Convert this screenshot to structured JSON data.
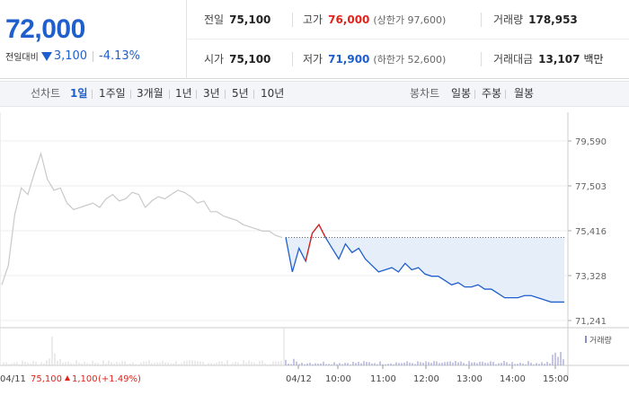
{
  "summary": {
    "price": "72,000",
    "change_label": "전일대비",
    "change_amount": "3,100",
    "change_percent": "-4.13%"
  },
  "stats": {
    "prev_close_label": "전일",
    "prev_close": "75,100",
    "high_label": "고가",
    "high": "76,000",
    "upper_limit": "(상한가 97,600)",
    "volume_label": "거래량",
    "volume": "178,953",
    "open_label": "시가",
    "open": "75,100",
    "low_label": "저가",
    "low": "71,900",
    "lower_limit": "(하한가 52,600)",
    "amount_label": "거래대금",
    "amount": "13,107",
    "amount_unit": "백만"
  },
  "tabs": {
    "line_label": "선차트",
    "line_periods": [
      "1일",
      "1주일",
      "3개월",
      "1년",
      "3년",
      "5년",
      "10년"
    ],
    "active_period": "1일",
    "candle_label": "봉차트",
    "candle_periods": [
      "일봉",
      "주봉",
      "월봉"
    ]
  },
  "colors": {
    "up": "#e0241b",
    "down": "#1f5fcd",
    "prev_day": "#c9c9c9",
    "fill": "#e6eef9"
  },
  "chart_data": {
    "type": "line",
    "y_ticks": [
      "79,590",
      "77,503",
      "75,416",
      "73,328",
      "71,241"
    ],
    "ylim": [
      71241,
      79590
    ],
    "reference_price": 75100,
    "x_labels": [
      "04/12",
      "10:00",
      "11:00",
      "12:00",
      "13:00",
      "14:00",
      "15:00"
    ],
    "prev_day_label": "04/11",
    "prev_day_close": "75,100",
    "prev_day_change": "1,100",
    "prev_day_change_pct": "(+1.49%)",
    "volume_label": "거래량",
    "prev_day_series": [
      72900,
      73800,
      76200,
      77400,
      77100,
      78100,
      79000,
      77800,
      77300,
      77400,
      76700,
      76400,
      76500,
      76600,
      76700,
      76500,
      76900,
      77100,
      76800,
      76900,
      77200,
      77100,
      76500,
      76800,
      77000,
      76900,
      77100,
      77300,
      77200,
      77000,
      76700,
      76800,
      76300,
      76300,
      76100,
      76000,
      75900,
      75700,
      75600,
      75500,
      75400,
      75400,
      75200,
      75100
    ],
    "today_series": [
      75100,
      73500,
      74600,
      74000,
      75300,
      75700,
      75100,
      74600,
      74100,
      74800,
      74400,
      74600,
      74100,
      73800,
      73500,
      73600,
      73700,
      73500,
      73900,
      73600,
      73700,
      73400,
      73300,
      73300,
      73100,
      72900,
      73000,
      72800,
      72800,
      72900,
      72700,
      72700,
      72500,
      72300,
      72300,
      72300,
      72400,
      72400,
      72300,
      72200,
      72100,
      72100,
      72100
    ]
  }
}
